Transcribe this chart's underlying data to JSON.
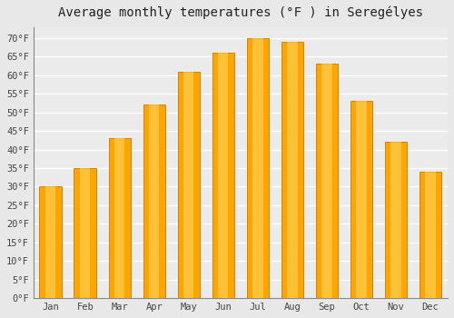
{
  "title": "Average monthly temperatures (°F ) in Seregélyes",
  "months": [
    "Jan",
    "Feb",
    "Mar",
    "Apr",
    "May",
    "Jun",
    "Jul",
    "Aug",
    "Sep",
    "Oct",
    "Nov",
    "Dec"
  ],
  "values": [
    30,
    35,
    43,
    52,
    61,
    66,
    70,
    69,
    63,
    53,
    42,
    34
  ],
  "bar_color": "#FFA500",
  "bar_edge_color": "#CC7700",
  "ylim": [
    0,
    73
  ],
  "ytick_min": 0,
  "ytick_max": 70,
  "ytick_step": 5,
  "background_color": "#e8e8e8",
  "plot_bg_color": "#ebebeb",
  "grid_color": "#ffffff",
  "title_fontsize": 10,
  "tick_fontsize": 7.5,
  "bar_width": 0.65
}
